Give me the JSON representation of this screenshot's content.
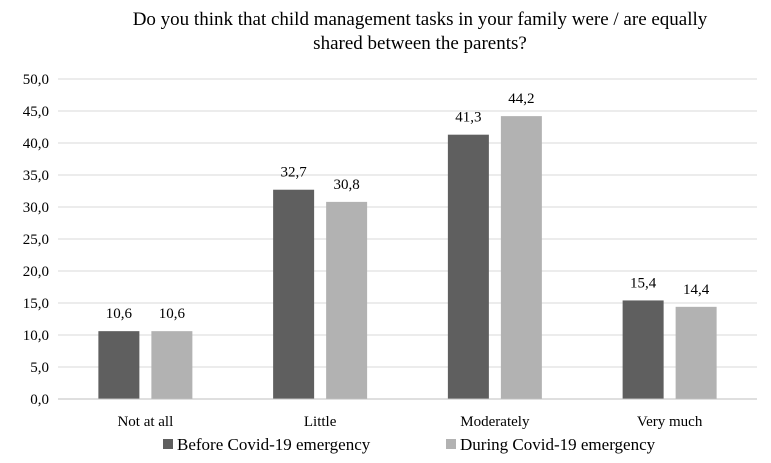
{
  "chart_data": {
    "type": "bar",
    "title_lines": [
      "Do you think that child management tasks in your family were / are equally",
      "shared between the parents?"
    ],
    "categories": [
      "Not at all",
      "Little",
      "Moderately",
      "Very much"
    ],
    "series": [
      {
        "name": "Before Covid-19 emergency",
        "values": [
          10.6,
          32.7,
          41.3,
          15.4
        ],
        "label_text": [
          "10,6",
          "32,7",
          "41,3",
          "15,4"
        ],
        "color": "#5f5f5f"
      },
      {
        "name": "During Covid-19 emergency",
        "values": [
          10.6,
          30.8,
          44.2,
          14.4
        ],
        "label_text": [
          "10,6",
          "30,8",
          "44,2",
          "14,4"
        ],
        "color": "#b2b2b2"
      }
    ],
    "ylim": [
      0,
      50
    ],
    "yticks": [
      0,
      5,
      10,
      15,
      20,
      25,
      30,
      35,
      40,
      45,
      50
    ],
    "ytick_labels": [
      "0,0",
      "5,0",
      "10,0",
      "15,0",
      "20,0",
      "25,0",
      "30,0",
      "35,0",
      "40,0",
      "45,0",
      "50,0"
    ],
    "grid": true,
    "legend_position": "bottom"
  }
}
